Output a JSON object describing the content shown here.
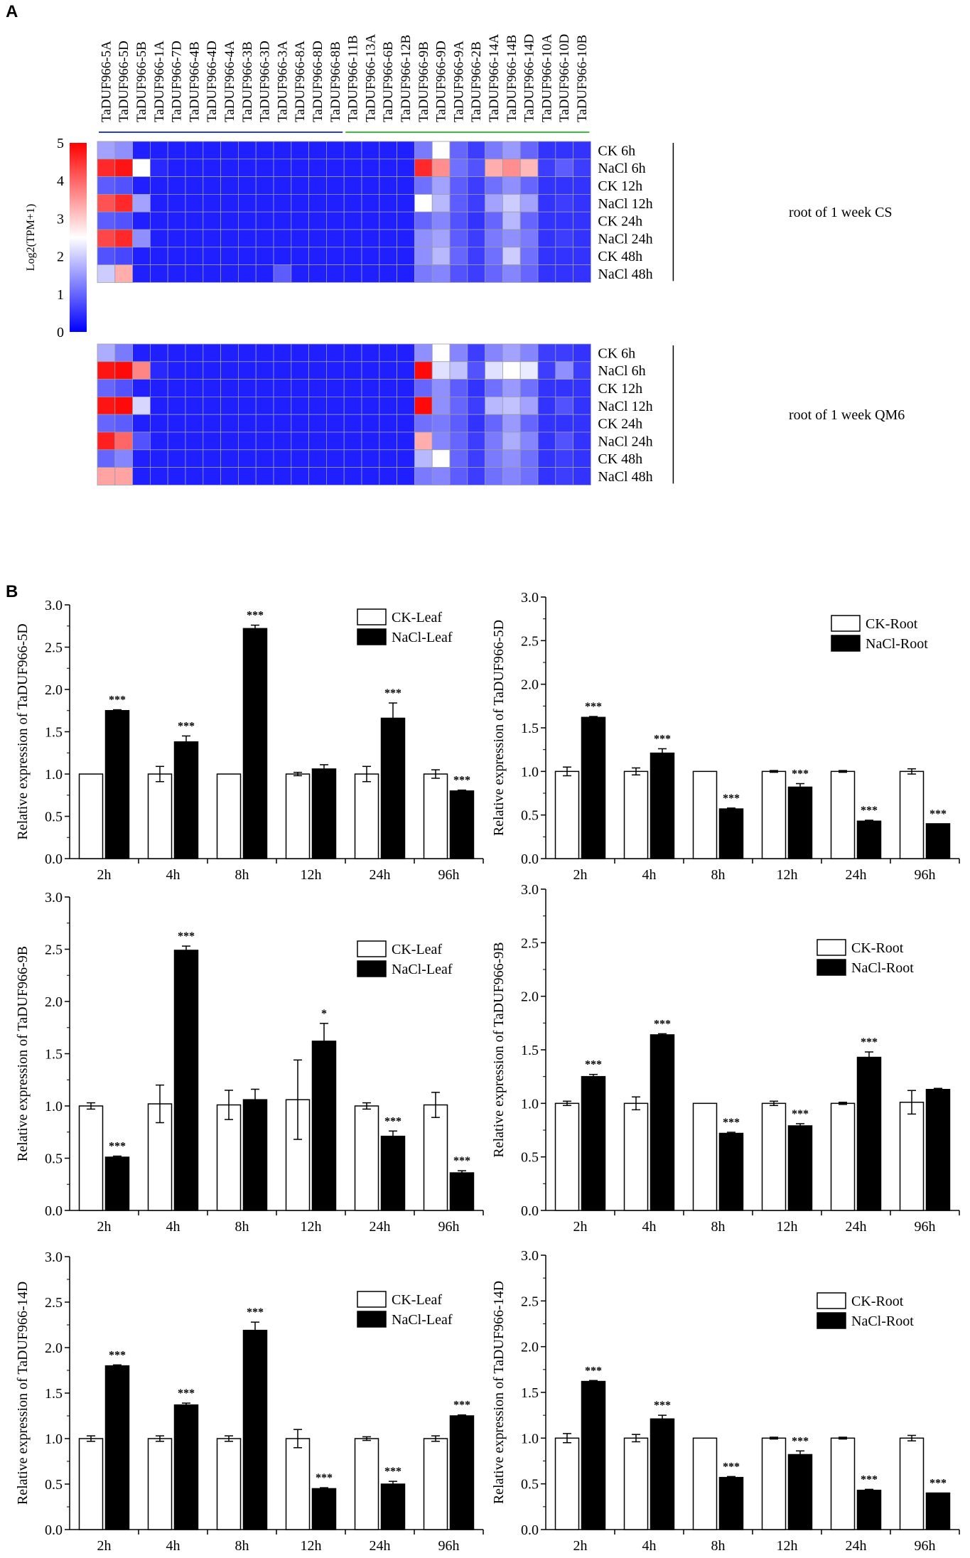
{
  "panels": {
    "a": "A",
    "b": "B"
  },
  "heatmap": {
    "genes": [
      "TaDUF966-5A",
      "TaDUF966-5D",
      "TaDUF966-5B",
      "TaDUF966-1A",
      "TaDUF966-7D",
      "TaDUF966-4B",
      "TaDUF966-4D",
      "TaDUF966-4A",
      "TaDUF966-3B",
      "TaDUF966-3D",
      "TaDUF966-3A",
      "TaDUF966-8A",
      "TaDUF966-8D",
      "TaDUF966-8B",
      "TaDUF966-11B",
      "TaDUF966-13A",
      "TaDUF966-6B",
      "TaDUF966-12B",
      "TaDUF966-9B",
      "TaDUF966-9D",
      "TaDUF966-9A",
      "TaDUF966-2B",
      "TaDUF966-14A",
      "TaDUF966-14B",
      "TaDUF966-14D",
      "TaDUF966-10A",
      "TaDUF966-10D",
      "TaDUF966-10B"
    ],
    "rows": [
      "CK 6h",
      "NaCl 6h",
      "CK 12h",
      "NaCl 12h",
      "CK 24h",
      "NaCl 24h",
      "CK 48h",
      "NaCl 48h"
    ],
    "group_labels": [
      "root of 1 week CS",
      "root of 1 week QM6"
    ],
    "colorbar": {
      "title": "Log2(TPM+1)",
      "ticks": [
        "5",
        "4",
        "3",
        "2",
        "1",
        "0"
      ],
      "min": 0,
      "max": 5
    },
    "colors": {
      "low": "#0000ff",
      "mid": "#ffffff",
      "high": "#ff0000",
      "cell_border": "#9a9aa8",
      "bracket1": "#2a3bd6",
      "bracket2": "#3dbf3d"
    },
    "cs": [
      [
        1.6,
        1.4,
        0.3,
        0.3,
        0.3,
        0.3,
        0.3,
        0.3,
        0.3,
        0.3,
        0.3,
        0.3,
        0.3,
        0.3,
        0.3,
        0.3,
        0.3,
        0.3,
        1.2,
        2.5,
        1.0,
        0.6,
        1.2,
        1.5,
        1.0,
        0.5,
        0.5,
        0.5
      ],
      [
        4.6,
        4.8,
        2.5,
        0.4,
        0.3,
        0.3,
        0.3,
        0.3,
        0.3,
        0.3,
        0.3,
        0.3,
        0.3,
        0.3,
        0.3,
        0.3,
        0.3,
        0.3,
        4.6,
        3.6,
        1.1,
        0.8,
        3.3,
        3.6,
        3.2,
        0.6,
        0.9,
        0.6
      ],
      [
        0.9,
        0.8,
        0.3,
        0.3,
        0.3,
        0.3,
        0.3,
        0.3,
        0.3,
        0.3,
        0.3,
        0.3,
        0.3,
        0.3,
        0.3,
        0.3,
        0.3,
        0.3,
        1.1,
        1.6,
        0.9,
        0.6,
        1.1,
        1.4,
        1.0,
        0.5,
        0.5,
        0.5
      ],
      [
        4.2,
        4.6,
        1.6,
        0.3,
        0.3,
        0.3,
        0.3,
        0.3,
        0.3,
        0.3,
        0.3,
        0.3,
        0.3,
        0.3,
        0.3,
        0.3,
        0.3,
        0.3,
        2.5,
        1.8,
        0.9,
        0.6,
        1.6,
        2.0,
        1.6,
        0.5,
        0.6,
        0.5
      ],
      [
        0.9,
        0.8,
        0.3,
        0.3,
        0.3,
        0.3,
        0.3,
        0.3,
        0.3,
        0.3,
        0.3,
        0.3,
        0.3,
        0.3,
        0.3,
        0.3,
        0.3,
        0.3,
        1.0,
        1.3,
        0.8,
        0.5,
        1.0,
        1.8,
        1.0,
        0.5,
        0.5,
        0.5
      ],
      [
        4.3,
        4.6,
        1.4,
        0.3,
        0.3,
        0.3,
        0.3,
        0.3,
        0.3,
        0.3,
        0.3,
        0.3,
        0.3,
        0.3,
        0.3,
        0.3,
        0.3,
        0.3,
        1.4,
        1.6,
        0.9,
        0.6,
        1.2,
        1.4,
        1.2,
        0.5,
        0.6,
        0.5
      ],
      [
        0.8,
        0.7,
        0.3,
        0.3,
        0.3,
        0.3,
        0.3,
        0.3,
        0.3,
        0.3,
        0.3,
        0.3,
        0.3,
        0.3,
        0.3,
        0.3,
        0.3,
        0.3,
        1.4,
        1.8,
        1.0,
        0.6,
        1.1,
        2.0,
        1.1,
        0.5,
        0.5,
        0.5
      ],
      [
        2.0,
        3.3,
        0.3,
        0.3,
        0.3,
        0.3,
        0.3,
        0.3,
        0.3,
        0.3,
        0.9,
        0.3,
        0.3,
        0.3,
        0.3,
        0.3,
        0.3,
        0.3,
        1.2,
        1.3,
        0.8,
        0.6,
        1.0,
        1.3,
        1.0,
        0.5,
        0.5,
        0.5
      ]
    ],
    "qm6": [
      [
        1.7,
        1.2,
        0.3,
        0.3,
        0.3,
        0.3,
        0.3,
        0.3,
        0.3,
        0.3,
        0.3,
        0.3,
        0.3,
        0.3,
        0.3,
        0.3,
        0.3,
        0.3,
        1.4,
        2.5,
        1.3,
        0.6,
        1.3,
        1.6,
        1.3,
        0.6,
        0.6,
        0.5
      ],
      [
        4.8,
        4.9,
        3.7,
        0.4,
        0.3,
        0.3,
        0.3,
        0.3,
        0.3,
        0.3,
        0.3,
        0.3,
        0.3,
        0.3,
        0.3,
        0.3,
        0.3,
        0.3,
        4.9,
        2.2,
        1.9,
        0.8,
        2.2,
        2.5,
        2.3,
        0.6,
        1.4,
        0.6
      ],
      [
        1.0,
        0.8,
        0.3,
        0.3,
        0.3,
        0.3,
        0.3,
        0.3,
        0.3,
        0.3,
        0.3,
        0.3,
        0.3,
        0.3,
        0.3,
        0.3,
        0.3,
        0.3,
        1.0,
        1.4,
        0.9,
        0.5,
        1.1,
        1.5,
        1.1,
        0.5,
        0.5,
        0.5
      ],
      [
        4.8,
        4.9,
        2.1,
        0.3,
        0.3,
        0.3,
        0.3,
        0.3,
        0.3,
        0.3,
        0.3,
        0.3,
        0.3,
        0.3,
        0.3,
        0.3,
        0.3,
        0.3,
        4.9,
        1.4,
        1.0,
        0.6,
        1.8,
        1.9,
        1.6,
        0.5,
        0.8,
        0.5
      ],
      [
        1.0,
        0.9,
        0.3,
        0.3,
        0.3,
        0.3,
        0.3,
        0.3,
        0.3,
        0.3,
        0.3,
        0.3,
        0.3,
        0.3,
        0.3,
        0.3,
        0.3,
        0.3,
        1.1,
        1.2,
        0.9,
        0.5,
        1.0,
        1.5,
        1.0,
        0.5,
        0.5,
        0.5
      ],
      [
        4.7,
        4.0,
        0.8,
        0.3,
        0.3,
        0.3,
        0.3,
        0.3,
        0.3,
        0.3,
        0.3,
        0.3,
        0.3,
        0.3,
        0.3,
        0.3,
        0.3,
        0.3,
        3.3,
        1.3,
        1.0,
        0.6,
        1.2,
        1.7,
        1.3,
        0.5,
        0.8,
        0.5
      ],
      [
        1.0,
        1.3,
        0.3,
        0.3,
        0.3,
        0.3,
        0.3,
        0.3,
        0.3,
        0.3,
        0.3,
        0.3,
        0.3,
        0.3,
        0.3,
        0.3,
        0.3,
        0.3,
        1.8,
        2.5,
        1.0,
        0.6,
        1.2,
        1.4,
        1.1,
        0.5,
        0.6,
        0.5
      ],
      [
        3.4,
        3.4,
        0.3,
        0.3,
        0.3,
        0.3,
        0.3,
        0.3,
        0.3,
        0.3,
        0.3,
        0.3,
        0.3,
        0.3,
        0.3,
        0.3,
        0.3,
        0.3,
        1.2,
        1.3,
        0.9,
        0.6,
        1.1,
        1.3,
        1.1,
        0.5,
        0.6,
        0.5
      ]
    ]
  },
  "chart_data": [
    {
      "type": "bar",
      "ylabel": "Relative expression of TaDUF966-5D",
      "categories": [
        "2h",
        "4h",
        "8h",
        "12h",
        "24h",
        "96h"
      ],
      "ylim": [
        0,
        3
      ],
      "yticks": [
        "0.0",
        "0.5",
        "1.0",
        "1.5",
        "2.0",
        "2.5",
        "3.0"
      ],
      "series": [
        {
          "name": "CK-Leaf",
          "values": [
            1.0,
            1.0,
            1.0,
            1.0,
            1.0,
            1.0
          ],
          "errors": [
            0.0,
            0.09,
            0.0,
            0.02,
            0.09,
            0.05
          ]
        },
        {
          "name": "NaCl-Leaf",
          "values": [
            1.75,
            1.38,
            2.72,
            1.06,
            1.66,
            0.8
          ],
          "errors": [
            0.01,
            0.07,
            0.04,
            0.05,
            0.18,
            0.01
          ],
          "sig": [
            "***",
            "***",
            "***",
            "",
            "***",
            "***"
          ]
        }
      ]
    },
    {
      "type": "bar",
      "ylabel": "Relative expression of TaDUF966-5D",
      "categories": [
        "2h",
        "4h",
        "8h",
        "12h",
        "24h",
        "96h"
      ],
      "ylim": [
        0,
        3
      ],
      "yticks": [
        "0.0",
        "0.5",
        "1.0",
        "1.5",
        "2.0",
        "2.5",
        "3.0"
      ],
      "series": [
        {
          "name": "CK-Root",
          "values": [
            1.0,
            1.0,
            1.0,
            1.0,
            1.0,
            1.0
          ],
          "errors": [
            0.05,
            0.04,
            0.0,
            0.01,
            0.01,
            0.03
          ]
        },
        {
          "name": "NaCl-Root",
          "values": [
            1.62,
            1.21,
            0.57,
            0.82,
            0.43,
            0.4
          ],
          "errors": [
            0.01,
            0.05,
            0.01,
            0.04,
            0.01,
            0.0
          ],
          "sig": [
            "***",
            "***",
            "***",
            "***",
            "***",
            "***"
          ]
        }
      ]
    },
    {
      "type": "bar",
      "ylabel": "Relative expression of TaDUF966-9B",
      "categories": [
        "2h",
        "4h",
        "8h",
        "12h",
        "24h",
        "96h"
      ],
      "ylim": [
        0,
        3
      ],
      "yticks": [
        "0.0",
        "0.5",
        "1.0",
        "1.5",
        "2.0",
        "2.5",
        "3.0"
      ],
      "series": [
        {
          "name": "CK-Leaf",
          "values": [
            1.0,
            1.02,
            1.01,
            1.06,
            1.0,
            1.01
          ],
          "errors": [
            0.03,
            0.18,
            0.14,
            0.38,
            0.03,
            0.12
          ]
        },
        {
          "name": "NaCl-Leaf",
          "values": [
            0.51,
            2.49,
            1.06,
            1.62,
            0.71,
            0.36
          ],
          "errors": [
            0.01,
            0.04,
            0.1,
            0.17,
            0.05,
            0.02
          ],
          "sig": [
            "***",
            "***",
            "",
            "*",
            "***",
            "***"
          ]
        }
      ]
    },
    {
      "type": "bar",
      "ylabel": "Relative expression of TaDUF966-9B",
      "categories": [
        "2h",
        "4h",
        "8h",
        "12h",
        "24h",
        "96h"
      ],
      "ylim": [
        0,
        3
      ],
      "yticks": [
        "0.0",
        "0.5",
        "1.0",
        "1.5",
        "2.0",
        "2.5",
        "3.0"
      ],
      "series": [
        {
          "name": "CK-Root",
          "values": [
            1.0,
            1.0,
            1.0,
            1.0,
            1.0,
            1.01
          ],
          "errors": [
            0.02,
            0.06,
            0.0,
            0.02,
            0.01,
            0.11
          ]
        },
        {
          "name": "NaCl-Root",
          "values": [
            1.25,
            1.64,
            0.72,
            0.79,
            1.43,
            1.13
          ],
          "errors": [
            0.02,
            0.01,
            0.01,
            0.02,
            0.05,
            0.01
          ],
          "sig": [
            "***",
            "***",
            "***",
            "***",
            "***",
            ""
          ]
        }
      ]
    },
    {
      "type": "bar",
      "ylabel": "Relative expression of TaDUF966-14D",
      "categories": [
        "2h",
        "4h",
        "8h",
        "12h",
        "24h",
        "96h"
      ],
      "ylim": [
        0,
        3
      ],
      "yticks": [
        "0.0",
        "0.5",
        "1.0",
        "1.5",
        "2.0",
        "2.5",
        "3.0"
      ],
      "series": [
        {
          "name": "CK-Leaf",
          "values": [
            1.0,
            1.0,
            1.0,
            1.0,
            1.0,
            1.0
          ],
          "errors": [
            0.03,
            0.03,
            0.03,
            0.1,
            0.02,
            0.03
          ]
        },
        {
          "name": "NaCl-Leaf",
          "values": [
            1.8,
            1.37,
            2.19,
            0.45,
            0.5,
            1.25
          ],
          "errors": [
            0.01,
            0.02,
            0.09,
            0.01,
            0.03,
            0.01
          ],
          "sig": [
            "***",
            "***",
            "***",
            "***",
            "***",
            "***"
          ]
        }
      ]
    },
    {
      "type": "bar",
      "ylabel": "Relative expression of TaDUF966-14D",
      "categories": [
        "2h",
        "4h",
        "8h",
        "12h",
        "24h",
        "96h"
      ],
      "ylim": [
        0,
        3
      ],
      "yticks": [
        "0.0",
        "0.5",
        "1.0",
        "1.5",
        "2.0",
        "2.5",
        "3.0"
      ],
      "series": [
        {
          "name": "CK-Root",
          "values": [
            1.0,
            1.0,
            1.0,
            1.0,
            1.0,
            1.0
          ],
          "errors": [
            0.05,
            0.04,
            0.0,
            0.01,
            0.01,
            0.03
          ]
        },
        {
          "name": "NaCl-Root",
          "values": [
            1.62,
            1.21,
            0.57,
            0.82,
            0.43,
            0.4
          ],
          "errors": [
            0.01,
            0.04,
            0.01,
            0.04,
            0.01,
            0.0
          ],
          "sig": [
            "***",
            "***",
            "***",
            "***",
            "***",
            "***"
          ]
        }
      ]
    }
  ]
}
